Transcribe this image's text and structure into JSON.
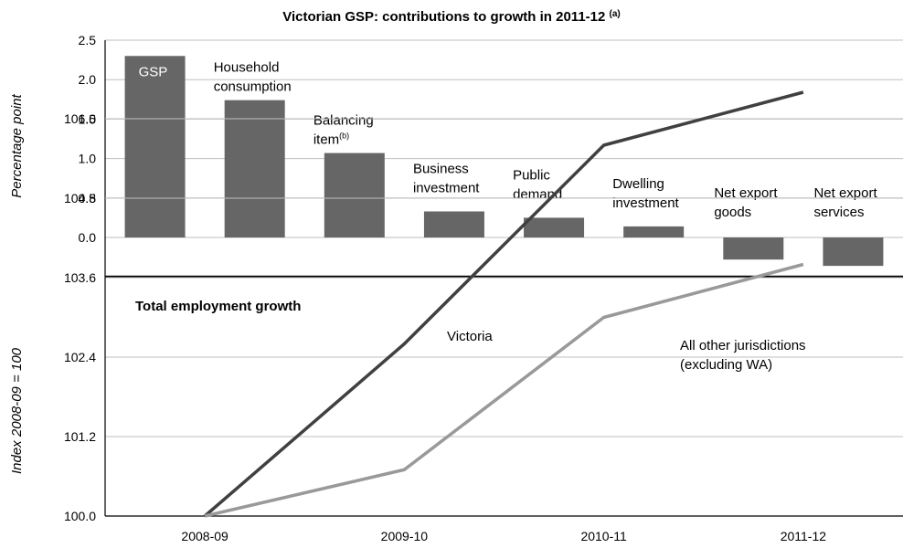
{
  "chart_data": [
    {
      "type": "bar",
      "title": "Victorian GSP: contributions to growth in 2011-12",
      "title_note": "(a)",
      "ylabel": "Percentage point",
      "ylim": [
        -0.4,
        2.5
      ],
      "yticks": [
        "2.5",
        "2.0",
        "1.5",
        "1.0",
        "0.5",
        "0.0"
      ],
      "grid": true,
      "color": "#666666",
      "bars": [
        {
          "lines": [
            "GSP"
          ],
          "value": 2.3,
          "label_inside": true
        },
        {
          "lines": [
            "Household",
            "consumption"
          ],
          "value": 1.74
        },
        {
          "lines": [
            "Balancing",
            "item"
          ],
          "note": "(b)",
          "value": 1.07
        },
        {
          "lines": [
            "Business",
            "investment"
          ],
          "value": 0.33
        },
        {
          "lines": [
            "Public",
            "demand"
          ],
          "value": 0.25
        },
        {
          "lines": [
            "Dwelling",
            "investment"
          ],
          "value": 0.14
        },
        {
          "lines": [
            "Net export",
            "goods"
          ],
          "value": -0.28
        },
        {
          "lines": [
            "Net export",
            "services"
          ],
          "value": -0.36
        }
      ]
    },
    {
      "type": "line",
      "title": "Total employment growth",
      "ylabel": "Index 2008-09 = 100",
      "ylim": [
        100.0,
        107.2
      ],
      "yticks": [
        "106.0",
        "104.8",
        "103.6",
        "102.4",
        "101.2",
        "100.0"
      ],
      "categories": [
        "2008-09",
        "2009-10",
        "2010-11",
        "2011-12"
      ],
      "grid": true,
      "series": [
        {
          "name": "Victoria",
          "lines": [
            "Victoria"
          ],
          "color": "#404040",
          "values": [
            100.0,
            102.6,
            105.6,
            106.4
          ]
        },
        {
          "name": "All other jurisdictions (excluding WA)",
          "lines": [
            "All other jurisdictions",
            "(excluding WA)"
          ],
          "color": "#999999",
          "values": [
            100.0,
            100.7,
            103.0,
            103.8
          ]
        }
      ]
    }
  ]
}
